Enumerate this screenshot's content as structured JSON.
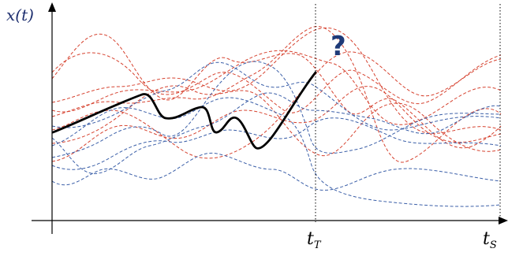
{
  "labels": {
    "y_axis": "x(t)",
    "tick_T_main": "t",
    "tick_T_sub": "T",
    "tick_S_main": "t",
    "tick_S_sub": "S",
    "question": "?"
  },
  "colors": {
    "red_curves": "#d6422f",
    "blue_curves": "#3b5fa8",
    "observed_curve": "#000000",
    "question_mark": "#1e3a78",
    "axis": "#000000"
  }
}
